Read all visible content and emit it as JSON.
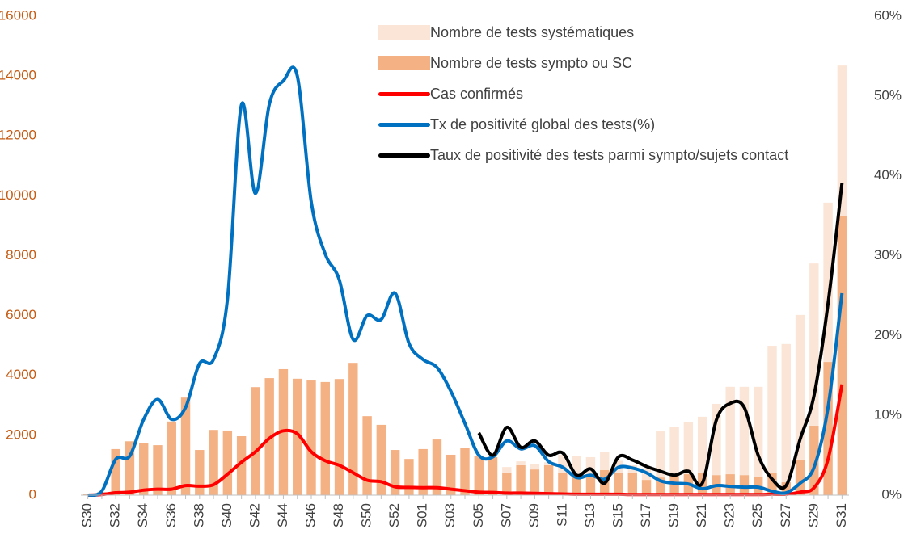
{
  "chart_data": {
    "type": "combo",
    "categories": [
      "S30",
      null,
      "S32",
      null,
      "S34",
      null,
      "S36",
      null,
      "S38",
      null,
      "S40",
      null,
      "S42",
      null,
      "S44",
      null,
      "S46",
      null,
      "S48",
      null,
      "S50",
      null,
      "S52",
      null,
      "S01",
      null,
      "S03",
      null,
      "S05",
      null,
      "S07",
      null,
      "S09",
      null,
      "S11",
      null,
      "S13",
      null,
      "S15",
      null,
      "S17",
      null,
      "S19",
      null,
      "S21",
      null,
      "S23",
      null,
      "S25",
      null,
      "S27",
      null,
      "S29",
      null,
      "S31"
    ],
    "stacked": true,
    "legend": "upper right",
    "series": [
      {
        "name": "Nombre de tests systématiques",
        "type": "bar",
        "color": "#fbe5d6",
        "values": [
          0,
          0,
          0,
          0,
          0,
          0,
          0,
          0,
          0,
          0,
          0,
          0,
          0,
          0,
          0,
          0,
          0,
          0,
          0,
          0,
          0,
          0,
          0,
          0,
          0,
          0,
          0,
          0,
          0,
          0,
          190,
          130,
          190,
          100,
          600,
          680,
          600,
          590,
          420,
          270,
          390,
          1540,
          1600,
          1730,
          1890,
          2380,
          2920,
          2950,
          3000,
          4240,
          4620,
          4830,
          5420,
          5320,
          5040
        ]
      },
      {
        "name": "Nombre de tests sympto ou SC",
        "type": "bar",
        "color": "#f4b183",
        "values": [
          50,
          100,
          1540,
          1800,
          1730,
          1670,
          2460,
          3260,
          1510,
          2180,
          2160,
          1970,
          3610,
          3910,
          4210,
          3890,
          3830,
          3780,
          3880,
          4420,
          2640,
          2350,
          1510,
          1210,
          1540,
          1860,
          1350,
          1590,
          1300,
          1270,
          750,
          1000,
          860,
          1000,
          750,
          620,
          670,
          840,
          730,
          730,
          510,
          590,
          670,
          700,
          730,
          670,
          700,
          670,
          620,
          750,
          430,
          1190,
          2320,
          4450,
          9310
        ]
      },
      {
        "name": "Cas confirmés",
        "type": "line",
        "color": "#ff0000",
        "values": [
          0,
          20,
          80,
          100,
          170,
          200,
          200,
          320,
          300,
          350,
          700,
          1100,
          1450,
          1900,
          2150,
          2050,
          1450,
          1150,
          1000,
          750,
          500,
          450,
          280,
          260,
          250,
          250,
          200,
          150,
          100,
          90,
          70,
          70,
          60,
          50,
          40,
          30,
          30,
          30,
          30,
          20,
          20,
          20,
          20,
          20,
          20,
          20,
          20,
          20,
          20,
          30,
          30,
          100,
          250,
          1200,
          3700
        ]
      },
      {
        "name": "Tx de positivité global des tests(%)",
        "type": "line",
        "axis": "y2",
        "color": "#0070c0",
        "values": [
          0,
          0.5,
          4.5,
          4.9,
          9.5,
          12,
          9.5,
          11,
          16.5,
          17,
          24.6,
          48.9,
          37.8,
          49,
          51.9,
          52.5,
          36.7,
          30.2,
          27,
          19.5,
          22.5,
          22,
          25.3,
          19,
          17,
          16,
          13,
          9,
          5,
          4.8,
          6.8,
          5.8,
          6.2,
          4.2,
          3.5,
          2.2,
          2.5,
          2,
          3.5,
          3.4,
          2.8,
          1.8,
          1.5,
          1.4,
          0.8,
          1.2,
          1.1,
          1,
          1,
          0.5,
          0.3,
          1.5,
          3.5,
          11,
          25.3
        ]
      },
      {
        "name": "Taux de positivité des tests parmi sympto/sujets contact",
        "type": "line",
        "axis": "y2",
        "color": "#000000",
        "values": [
          null,
          null,
          null,
          null,
          null,
          null,
          null,
          null,
          null,
          null,
          null,
          null,
          null,
          null,
          null,
          null,
          null,
          null,
          null,
          null,
          null,
          null,
          null,
          null,
          null,
          null,
          null,
          null,
          7.8,
          5,
          8.5,
          6,
          6.8,
          5,
          5.3,
          2.5,
          3.3,
          1.5,
          4.8,
          4.4,
          3.6,
          3,
          2.5,
          3,
          1.5,
          9.4,
          11.5,
          11,
          5,
          2,
          1.2,
          7,
          12.5,
          24,
          39.1
        ]
      }
    ],
    "ylim": [
      0,
      16000
    ],
    "yticks": [
      0,
      2000,
      4000,
      6000,
      8000,
      10000,
      12000,
      14000,
      16000
    ],
    "y2lim": [
      0,
      60
    ],
    "y2ticks": [
      {
        "value": 0,
        "label": "0%"
      },
      {
        "value": 10,
        "label": "10%"
      },
      {
        "value": 20,
        "label": "20%"
      },
      {
        "value": 30,
        "label": "30%"
      },
      {
        "value": 40,
        "label": "40%"
      },
      {
        "value": 50,
        "label": "50%"
      },
      {
        "value": 60,
        "label": "60%"
      }
    ],
    "ytick_color": "#c55a11"
  }
}
